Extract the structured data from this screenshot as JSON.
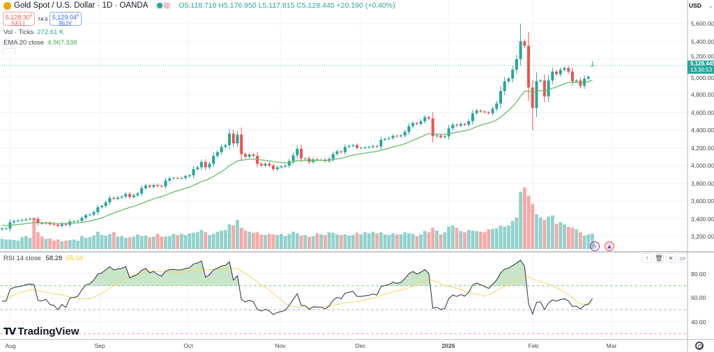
{
  "header": {
    "title": "Gold Spot / U.S. Dollar · 1D · OANDA",
    "open": "O5,118.710",
    "high": "H5,176.950",
    "low": "L5,117.815",
    "close": "C5,128.445",
    "change": "+20.190 (+0.40%)"
  },
  "trade": {
    "sell_price": "5,128.30",
    "sell_sup": "0",
    "sell_label": "SELL",
    "spread": "74.0",
    "buy_price": "5,129.04",
    "buy_sup": "0",
    "buy_label": "BUY"
  },
  "indicators": {
    "vol_label": "Vol · Ticks",
    "vol_value": "272.61 K",
    "ema_label": "EMA 20 close",
    "ema_value": "4,967.338",
    "rsi_label": "RSI 14 close",
    "rsi_value": "58.28",
    "rsi_ma_value": "55.18"
  },
  "axis": {
    "currency": "USD",
    "last_price": "5,128.445",
    "countdown": "13:30:53",
    "gear_icon": "gear-icon"
  },
  "brand": "TradingView",
  "colors": {
    "up": "#26a69a",
    "down": "#ef5350",
    "ema": "#66bb6a",
    "rsi": "#2a2e39",
    "rsi_ma": "#f9d65c"
  },
  "chart_data": [
    {
      "type": "candlestick",
      "title": "Gold Spot / U.S. Dollar · 1D · OANDA",
      "ylabel": "USD",
      "ylim": [
        3150,
        5700
      ],
      "yticks": [
        "3,200.000",
        "3,400.000",
        "3,600.000",
        "3,800.000",
        "4,000.000",
        "4,200.000",
        "4,400.000",
        "4,600.000",
        "4,800.000",
        "5,000.000",
        "5,200.000",
        "5,400.000",
        "5,600.000"
      ],
      "xticks": [
        "Aug",
        "Sep",
        "Oct",
        "Nov",
        "Dec",
        "2026",
        "Feb",
        "Mar"
      ],
      "x_range": [
        "2025-07-30",
        "2026-02-23"
      ],
      "close": [
        3290,
        3290,
        3360,
        3375,
        3380,
        3385,
        3395,
        3400,
        3398,
        3350,
        3348,
        3355,
        3338,
        3335,
        3320,
        3340,
        3330,
        3370,
        3372,
        3378,
        3410,
        3440,
        3448,
        3475,
        3530,
        3545,
        3585,
        3635,
        3625,
        3640,
        3650,
        3680,
        3645,
        3665,
        3685,
        3745,
        3775,
        3760,
        3780,
        3770,
        3765,
        3830,
        3855,
        3860,
        3858,
        3860,
        3880,
        3890,
        3960,
        3980,
        4040,
        3980,
        4020,
        4110,
        4150,
        4210,
        4230,
        4360,
        4250,
        4350,
        4130,
        4100,
        4125,
        4110,
        4020,
        4000,
        4020,
        4000,
        3960,
        3980,
        3990,
        4000,
        4050,
        4115,
        4190,
        4080,
        4080,
        4040,
        4070,
        4065,
        4065,
        4050,
        4075,
        4130,
        4160,
        4150,
        4210,
        4220,
        4230,
        4200,
        4200,
        4205,
        4210,
        4220,
        4215,
        4290,
        4300,
        4310,
        4335,
        4330,
        4340,
        4380,
        4445,
        4480,
        4470,
        4500,
        4545,
        4530,
        4330,
        4340,
        4320,
        4330,
        4420,
        4460,
        4450,
        4470,
        4460,
        4500,
        4590,
        4620,
        4610,
        4600,
        4590,
        4640,
        4700,
        4840,
        4950,
        4980,
        5080,
        5200,
        5400,
        5350,
        4880,
        4650,
        4950,
        4960,
        4780,
        4960,
        5060,
        5030,
        5080,
        5100,
        5060,
        4950,
        4960,
        4900,
        4980,
        5000,
        5128.445
      ],
      "last_candle": {
        "open": 5118.71,
        "high": 5176.95,
        "low": 5117.815,
        "close": 5128.445
      },
      "notable_extremes": {
        "high": 5600,
        "low_after_peak": 4400
      },
      "series": [
        {
          "name": "Vol · Ticks",
          "unit": "K",
          "values": [
            180,
            170,
            170,
            160,
            150,
            210,
            230,
            200,
            560,
            300,
            220,
            180,
            190,
            150,
            170,
            140,
            150,
            160,
            170,
            150,
            230,
            200,
            210,
            240,
            310,
            250,
            240,
            270,
            300,
            220,
            230,
            200,
            210,
            220,
            260,
            230,
            240,
            210,
            220,
            270,
            220,
            220,
            230,
            270,
            250,
            270,
            250,
            280,
            290,
            300,
            340,
            300,
            250,
            270,
            310,
            330,
            340,
            440,
            420,
            520,
            380,
            330,
            310,
            290,
            300,
            260,
            250,
            270,
            260,
            250,
            270,
            230,
            270,
            310,
            280,
            240,
            250,
            220,
            230,
            280,
            260,
            250,
            300,
            290,
            260,
            250,
            260,
            240,
            250,
            290,
            260,
            300,
            280,
            310,
            280,
            300,
            260,
            250,
            280,
            260,
            260,
            300,
            280,
            270,
            230,
            260,
            320,
            300,
            380,
            330,
            260,
            300,
            400,
            420,
            380,
            320,
            300,
            340,
            330,
            320,
            310,
            300,
            350,
            360,
            370,
            420,
            400,
            420,
            500,
            560,
            1020,
            1100,
            950,
            800,
            620,
            560,
            520,
            580,
            600,
            450,
            480,
            440,
            400,
            380,
            350,
            300,
            240,
            260,
            272.61
          ]
        },
        {
          "name": "EMA 20 close",
          "period": 20
        }
      ]
    },
    {
      "type": "line",
      "title": "RSI 14 close",
      "ylim": [
        20,
        100
      ],
      "yticks": [
        "40.00",
        "60.00",
        "80.00"
      ],
      "bands": [
        70,
        50,
        30
      ],
      "series": [
        {
          "name": "RSI",
          "period": 14
        },
        {
          "name": "RSI MA",
          "period": 14
        }
      ]
    }
  ]
}
